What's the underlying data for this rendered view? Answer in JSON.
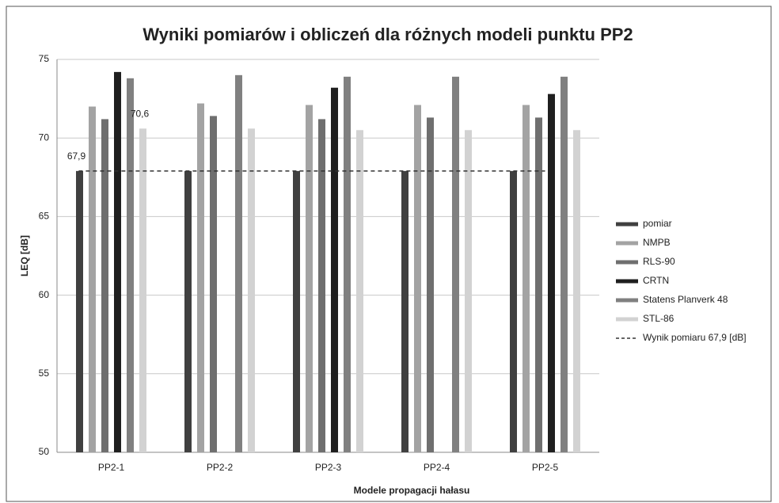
{
  "chart_data": {
    "type": "bar",
    "title": "Wyniki pomiarów i obliczeń dla różnych modeli punktu PP2",
    "x_label": "Modele propagacji hałasu",
    "y_label": "LEQ [dB]",
    "categories": [
      "PP2-1",
      "PP2-2",
      "PP2-3",
      "PP2-4",
      "PP2-5"
    ],
    "series": [
      {
        "name": "pomiar",
        "color": "#404040",
        "values": [
          67.9,
          67.9,
          67.9,
          67.9,
          67.9
        ],
        "value_labels": [
          "67,9",
          null,
          null,
          null,
          null
        ]
      },
      {
        "name": "NMPB",
        "color": "#a3a3a3",
        "values": [
          72.0,
          72.2,
          72.1,
          72.1,
          72.1
        ]
      },
      {
        "name": "RLS-90",
        "color": "#6f6f6f",
        "values": [
          71.2,
          71.4,
          71.2,
          71.3,
          71.3
        ]
      },
      {
        "name": "CRTN",
        "color": "#1f1f1f",
        "values": [
          74.2,
          null,
          73.2,
          null,
          72.8
        ]
      },
      {
        "name": "Statens Planverk 48",
        "color": "#808080",
        "values": [
          73.8,
          74.0,
          73.9,
          73.9,
          73.9
        ]
      },
      {
        "name": "STL-86",
        "color": "#d2d2d2",
        "values": [
          70.6,
          70.6,
          70.5,
          70.5,
          70.5
        ],
        "value_labels": [
          "70,6",
          null,
          null,
          null,
          null
        ]
      }
    ],
    "reference_line": {
      "name": "Wynik pomiaru 67,9 [dB]",
      "value": 67.9,
      "color": "#333333"
    },
    "ylim": [
      50,
      75
    ],
    "yticks": [
      50,
      55,
      60,
      65,
      70,
      75
    ],
    "grid": true,
    "legend": "right"
  }
}
